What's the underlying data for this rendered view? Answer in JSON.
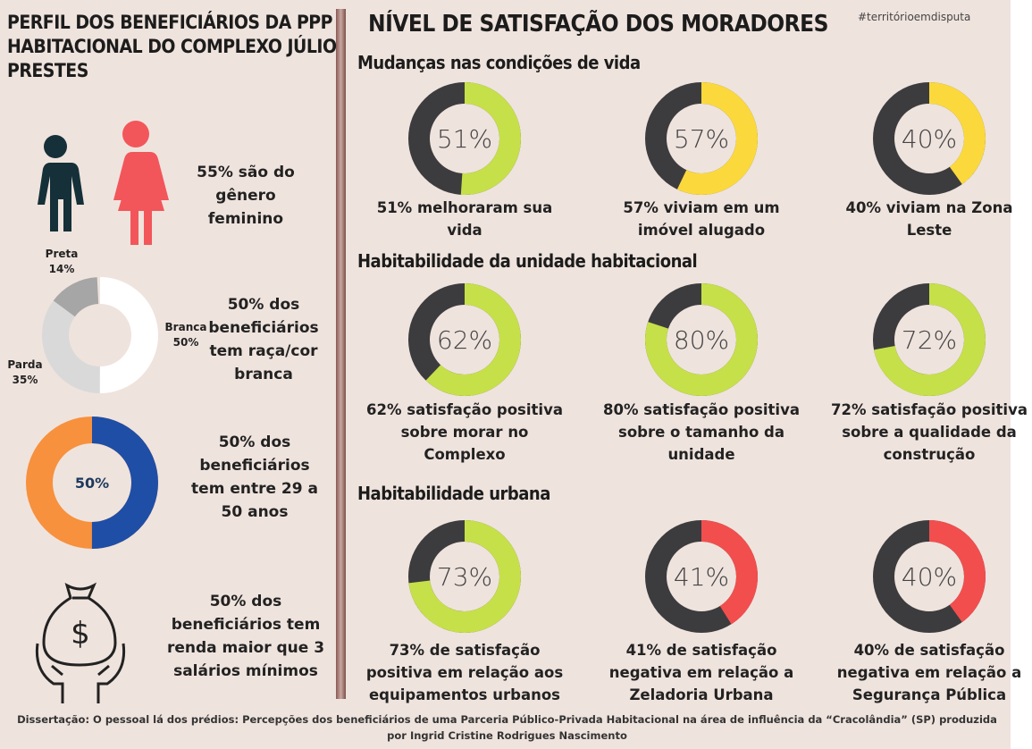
{
  "left": {
    "title": "PERFIL DOS BENEFICIÁRIOS DA PPP HABITACIONAL DO COMPLEXO JÚLIO PRESTES",
    "gender": {
      "text": "55% são do gênero feminino"
    },
    "race": {
      "text": "50% dos beneficiários tem raça/cor branca",
      "segments": [
        {
          "name": "Branca",
          "value": 50,
          "label": "50%",
          "color": "#ffffff"
        },
        {
          "name": "Parda",
          "value": 35,
          "label": "35%",
          "color": "#d9d9d9"
        },
        {
          "name": "Preta",
          "value": 14,
          "label": "14%",
          "color": "#a6a6a6"
        }
      ]
    },
    "age": {
      "text": "50% dos beneficiários tem entre 29 a 50 anos",
      "value": 50,
      "label": "50%",
      "color": "#1f4ea6",
      "rest_color": "#f7913d"
    },
    "income": {
      "text": "50% dos beneficiários tem renda maior que 3 salários mínimos"
    }
  },
  "right": {
    "title": "NÍVEL DE SATISFAÇÃO DOS MORADORES",
    "hashtag": "#territórioemdisputa",
    "sections": [
      {
        "title": "Mudanças nas condições de vida",
        "items": [
          {
            "value": 51,
            "label": "51%",
            "color": "#c6e04a",
            "caption": "51% melhoraram sua vida"
          },
          {
            "value": 57,
            "label": "57%",
            "color": "#fbd93c",
            "caption": "57% viviam em um imóvel alugado"
          },
          {
            "value": 40,
            "label": "40%",
            "color": "#fbd93c",
            "caption": "40% viviam na Zona Leste"
          }
        ]
      },
      {
        "title": "Habitabilidade da unidade habitacional",
        "items": [
          {
            "value": 62,
            "label": "62%",
            "color": "#c6e04a",
            "caption": "62% satisfação positiva sobre morar no Complexo"
          },
          {
            "value": 80,
            "label": "80%",
            "color": "#c6e04a",
            "caption": "80% satisfação positiva sobre o tamanho da unidade"
          },
          {
            "value": 72,
            "label": "72%",
            "color": "#c6e04a",
            "caption": "72% satisfação positiva sobre  a qualidade da construção"
          }
        ]
      },
      {
        "title": "Habitabilidade  urbana",
        "items": [
          {
            "value": 73,
            "label": "73%",
            "color": "#c6e04a",
            "caption": "73% de satisfação positiva em relação aos equipamentos urbanos"
          },
          {
            "value": 41,
            "label": "41%",
            "color": "#f24e4e",
            "caption": "41% de satisfação negativa em relação a Zeladoria Urbana"
          },
          {
            "value": 40,
            "label": "40%",
            "color": "#f24e4e",
            "caption": "40% de satisfação negativa em relação a Segurança Pública"
          }
        ]
      }
    ]
  },
  "footer": "Dissertação: O pessoal lá dos prédios: Percepções dos beneficiários de uma Parceria Público-Privada Habitacional na área de influência da “Cracolândia” (SP) produzida por Ingrid Cristine Rodrigues Nascimento"
}
